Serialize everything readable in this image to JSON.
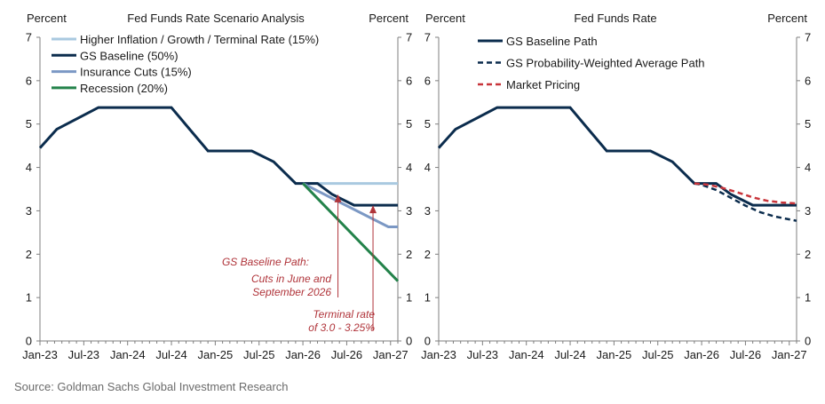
{
  "source": "Source: Goldman Sachs Global Investment Research",
  "chart_data": [
    {
      "type": "line",
      "title": "Fed Funds Rate Scenario Analysis",
      "ylabel_left": "Percent",
      "ylabel_right": "Percent",
      "ylim": [
        0,
        7
      ],
      "yticks": [
        "0",
        "1",
        "2",
        "3",
        "4",
        "5",
        "6",
        "7"
      ],
      "x_tick_labels": [
        "Jan-23",
        "Jul-23",
        "Jan-24",
        "Jul-24",
        "Jan-25",
        "Jul-25",
        "Jan-26",
        "Jul-26",
        "Jan-27"
      ],
      "x_range_months": [
        0,
        49
      ],
      "legend_position": "top",
      "series": [
        {
          "name": "Higher Inflation / Growth / Terminal Rate (15%)",
          "color": "#a9c9e0",
          "dash": "solid",
          "points": [
            [
              36,
              3.63
            ],
            [
              49,
              3.63
            ]
          ]
        },
        {
          "name": "GS Baseline (50%)",
          "color": "#0b2c4d",
          "dash": "solid",
          "points": [
            [
              0,
              4.45
            ],
            [
              2.3,
              4.88
            ],
            [
              8,
              5.38
            ],
            [
              18,
              5.38
            ],
            [
              20.5,
              4.88
            ],
            [
              23,
              4.38
            ],
            [
              29,
              4.38
            ],
            [
              32,
              4.13
            ],
            [
              35,
              3.63
            ],
            [
              38,
              3.63
            ],
            [
              40,
              3.38
            ],
            [
              43,
              3.13
            ],
            [
              49,
              3.13
            ]
          ]
        },
        {
          "name": "Insurance Cuts (15%)",
          "color": "#7b98c4",
          "dash": "solid",
          "points": [
            [
              36,
              3.63
            ],
            [
              47.7,
              2.63
            ],
            [
              49,
              2.63
            ]
          ]
        },
        {
          "name": "Recession (20%)",
          "color": "#23824a",
          "dash": "solid",
          "points": [
            [
              36,
              3.63
            ],
            [
              49,
              1.38
            ]
          ]
        }
      ],
      "annotations": [
        {
          "lines": [
            "GS Baseline Path:",
            "Cuts in June and",
            "September 2026"
          ],
          "arrow_x": 40.8,
          "arrow_y_top": 3.38
        },
        {
          "lines": [
            "Terminal rate",
            "of 3.0 - 3.25%"
          ],
          "arrow_x": 45.6,
          "arrow_y_top": 3.13
        }
      ]
    },
    {
      "type": "line",
      "title": "Fed Funds Rate",
      "ylabel_left": "Percent",
      "ylabel_right": "Percent",
      "ylim": [
        0,
        7
      ],
      "yticks": [
        "0",
        "1",
        "2",
        "3",
        "4",
        "5",
        "6",
        "7"
      ],
      "x_tick_labels": [
        "Jan-23",
        "Jul-23",
        "Jan-24",
        "Jul-24",
        "Jan-25",
        "Jul-25",
        "Jan-26",
        "Jul-26",
        "Jan-27"
      ],
      "x_range_months": [
        0,
        49
      ],
      "legend_position": "top",
      "series": [
        {
          "name": "GS Baseline Path",
          "color": "#0b2c4d",
          "dash": "solid",
          "points": [
            [
              0,
              4.45
            ],
            [
              2.3,
              4.88
            ],
            [
              8,
              5.38
            ],
            [
              18,
              5.38
            ],
            [
              20.5,
              4.88
            ],
            [
              23,
              4.38
            ],
            [
              29,
              4.38
            ],
            [
              32,
              4.13
            ],
            [
              35,
              3.63
            ],
            [
              38,
              3.63
            ],
            [
              40,
              3.38
            ],
            [
              43,
              3.13
            ],
            [
              49,
              3.13
            ]
          ]
        },
        {
          "name": "GS Probability-Weighted Average Path",
          "color": "#0b2c4d",
          "dash": "dashed",
          "points": [
            [
              35,
              3.63
            ],
            [
              36,
              3.6
            ],
            [
              38,
              3.48
            ],
            [
              40,
              3.3
            ],
            [
              42,
              3.12
            ],
            [
              44,
              2.97
            ],
            [
              46,
              2.87
            ],
            [
              49,
              2.77
            ]
          ]
        },
        {
          "name": "Market Pricing",
          "color": "#c8343a",
          "dash": "dashed",
          "points": [
            [
              35,
              3.63
            ],
            [
              37,
              3.6
            ],
            [
              39,
              3.52
            ],
            [
              41,
              3.42
            ],
            [
              43,
              3.31
            ],
            [
              45,
              3.23
            ],
            [
              47,
              3.19
            ],
            [
              49,
              3.17
            ]
          ]
        }
      ]
    }
  ]
}
